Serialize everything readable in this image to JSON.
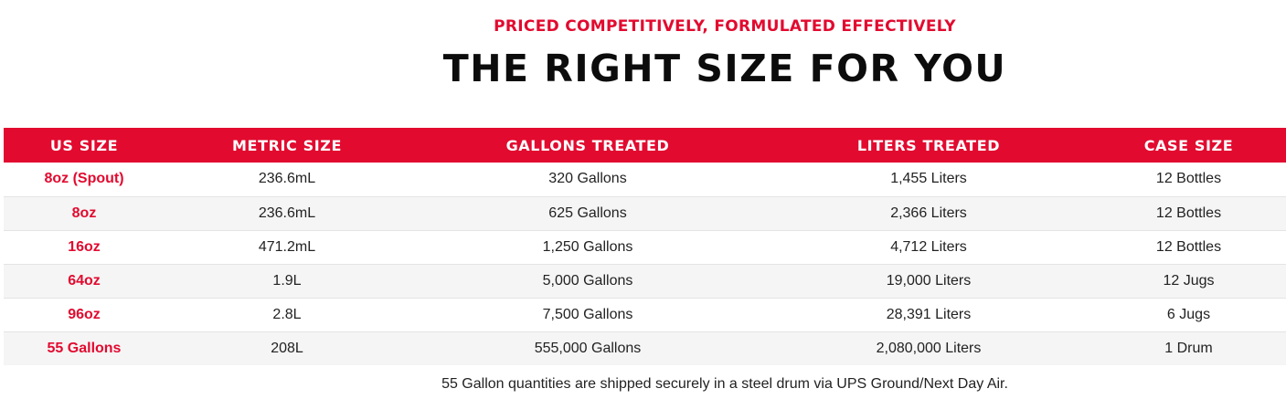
{
  "header": {
    "eyebrow": "PRICED COMPETITIVELY, FORMULATED EFFECTIVELY",
    "title": "THE RIGHT SIZE FOR YOU"
  },
  "table": {
    "columns": [
      "US SIZE",
      "METRIC SIZE",
      "GALLONS TREATED",
      "LITERS TREATED",
      "CASE SIZE"
    ],
    "rows": [
      {
        "us_size": "8oz (Spout)",
        "metric": "236.6mL",
        "gallons": "320 Gallons",
        "liters": "1,455 Liters",
        "case": "12 Bottles"
      },
      {
        "us_size": "8oz",
        "metric": "236.6mL",
        "gallons": "625 Gallons",
        "liters": "2,366 Liters",
        "case": "12 Bottles"
      },
      {
        "us_size": "16oz",
        "metric": "471.2mL",
        "gallons": "1,250 Gallons",
        "liters": "4,712 Liters",
        "case": "12 Bottles"
      },
      {
        "us_size": "64oz",
        "metric": "1.9L",
        "gallons": "5,000 Gallons",
        "liters": "19,000 Liters",
        "case": "12 Jugs"
      },
      {
        "us_size": "96oz",
        "metric": "2.8L",
        "gallons": "7,500 Gallons",
        "liters": "28,391 Liters",
        "case": "6 Jugs"
      },
      {
        "us_size": "55 Gallons",
        "metric": "208L",
        "gallons": "555,000 Gallons",
        "liters": "2,080,000 Liters",
        "case": "1 Drum"
      }
    ]
  },
  "footnote": "55 Gallon quantities are shipped securely in a steel drum via UPS Ground/Next Day Air.",
  "colors": {
    "accent": "#e20a2f",
    "header_text": "#ffffff",
    "stripe": "#f5f5f5"
  }
}
